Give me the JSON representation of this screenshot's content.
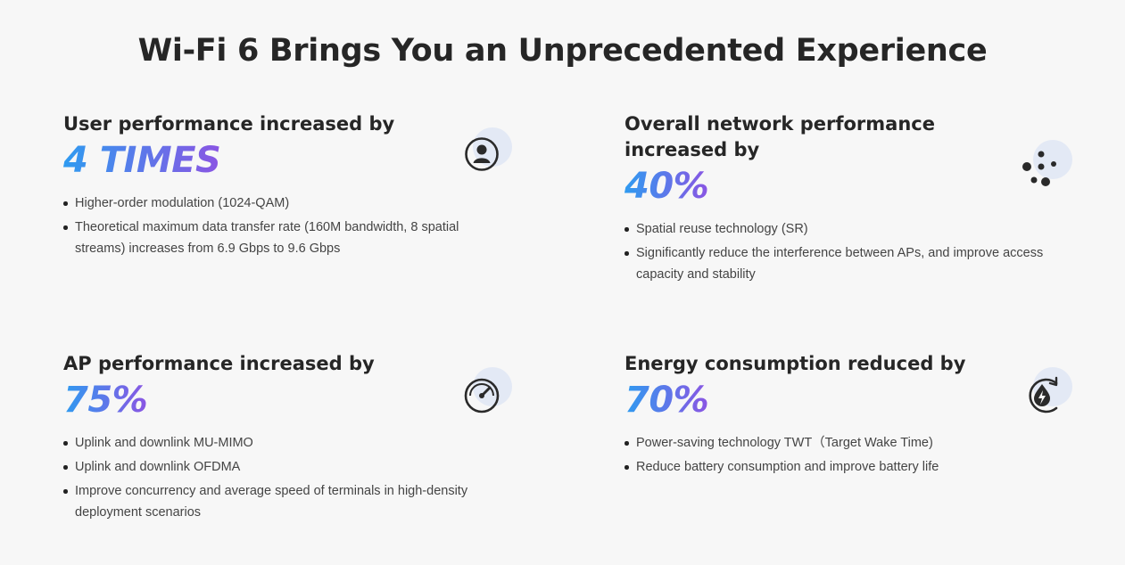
{
  "page": {
    "title": "Wi-Fi 6 Brings You an Unprecedented Experience"
  },
  "cards": [
    {
      "heading": "User performance increased by",
      "value": "4 TIMES",
      "icon": "user-icon",
      "bullets": [
        "Higher-order modulation (1024-QAM)",
        "Theoretical maximum data transfer rate (160M bandwidth, 8 spatial streams) increases from 6.9 Gbps to 9.6 Gbps"
      ]
    },
    {
      "heading": "Overall network performance increased by",
      "value": "40%",
      "icon": "network-dots-icon",
      "bullets": [
        "Spatial reuse technology (SR)",
        "Significantly reduce the interference between APs, and improve access capacity and stability"
      ]
    },
    {
      "heading": "AP performance increased by",
      "value": "75%",
      "icon": "speedometer-icon",
      "bullets": [
        "Uplink and downlink MU-MIMO",
        "Uplink and downlink OFDMA",
        "Improve concurrency and average speed of terminals in high-density deployment scenarios"
      ]
    },
    {
      "heading": "Energy consumption reduced by",
      "value": "70%",
      "icon": "energy-saving-icon",
      "bullets": [
        "Power-saving technology TWT（Target Wake Time)",
        "Reduce battery consumption and improve battery life"
      ]
    }
  ],
  "colors": {
    "gradient_start": "#2f9bf0",
    "gradient_end": "#8a55e3",
    "icon_halo": "#e3e9f5"
  }
}
